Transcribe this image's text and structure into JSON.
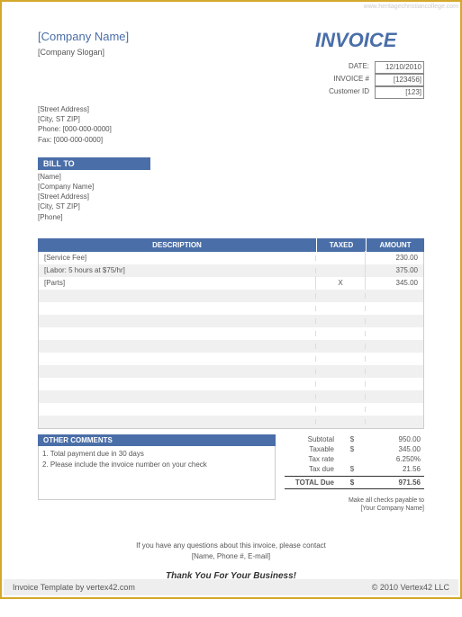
{
  "watermark": "www.heritagechristiancollege.com",
  "company": {
    "name": "[Company Name]",
    "slogan": "[Company Slogan]",
    "street": "[Street Address]",
    "city": "[City, ST  ZIP]",
    "phone": "Phone: [000-000-0000]",
    "fax": "Fax: [000-000-0000]"
  },
  "title": "INVOICE",
  "meta": {
    "date_label": "DATE:",
    "date_value": "12/10/2010",
    "invoice_label": "INVOICE #",
    "invoice_value": "[123456]",
    "customer_label": "Customer ID",
    "customer_value": "[123]"
  },
  "bill_to": {
    "header": "BILL TO",
    "name": "[Name]",
    "company": "[Company Name]",
    "street": "[Street Address]",
    "city": "[City, ST  ZIP]",
    "phone": "[Phone]"
  },
  "items": {
    "headers": {
      "desc": "DESCRIPTION",
      "taxed": "TAXED",
      "amount": "AMOUNT"
    },
    "rows": [
      {
        "desc": "[Service Fee]",
        "taxed": "",
        "amount": "230.00"
      },
      {
        "desc": "[Labor: 5 hours at $75/hr]",
        "taxed": "",
        "amount": "375.00"
      },
      {
        "desc": "[Parts]",
        "taxed": "X",
        "amount": "345.00"
      },
      {
        "desc": "",
        "taxed": "",
        "amount": ""
      },
      {
        "desc": "",
        "taxed": "",
        "amount": ""
      },
      {
        "desc": "",
        "taxed": "",
        "amount": ""
      },
      {
        "desc": "",
        "taxed": "",
        "amount": ""
      },
      {
        "desc": "",
        "taxed": "",
        "amount": ""
      },
      {
        "desc": "",
        "taxed": "",
        "amount": ""
      },
      {
        "desc": "",
        "taxed": "",
        "amount": ""
      },
      {
        "desc": "",
        "taxed": "",
        "amount": ""
      },
      {
        "desc": "",
        "taxed": "",
        "amount": ""
      },
      {
        "desc": "",
        "taxed": "",
        "amount": ""
      },
      {
        "desc": "",
        "taxed": "",
        "amount": ""
      }
    ]
  },
  "comments": {
    "header": "OTHER COMMENTS",
    "line1": "1. Total payment due in 30 days",
    "line2": "2. Please include the invoice number on your check"
  },
  "totals": {
    "subtotal_label": "Subtotal",
    "subtotal_value": "950.00",
    "taxable_label": "Taxable",
    "taxable_value": "345.00",
    "taxrate_label": "Tax rate",
    "taxrate_value": "6.250%",
    "taxdue_label": "Tax due",
    "taxdue_value": "21.56",
    "total_label": "TOTAL Due",
    "total_value": "971.56",
    "currency": "$"
  },
  "payable": {
    "line1": "Make all checks payable to",
    "line2": "[Your Company Name]"
  },
  "questions": {
    "line1": "If you have any questions about this invoice, please contact",
    "line2": "[Name, Phone #, E-mail]"
  },
  "thank": "Thank You For Your Business!",
  "footer": {
    "left": "Invoice Template by vertex42.com",
    "right": "© 2010 Vertex42 LLC"
  },
  "colors": {
    "accent": "#4a6ea8",
    "border": "#d4a82a"
  }
}
